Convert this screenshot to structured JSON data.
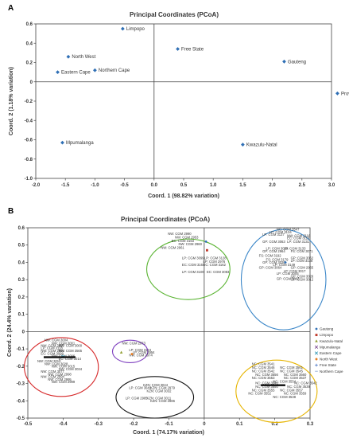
{
  "chart_data": [
    {
      "panel": "A",
      "type": "scatter",
      "title": "Principal Coordinates (PCoA)",
      "xlabel": "Coord. 1 (98.82% variation)",
      "ylabel": "Coord. 2 (1.18% variation)",
      "xlim": [
        -2.0,
        3.0
      ],
      "ylim": [
        -1.0,
        0.6
      ],
      "xticks": [
        -2.0,
        -1.5,
        -1.0,
        -0.5,
        0.0,
        0.5,
        1.0,
        1.5,
        2.0,
        2.5,
        3.0
      ],
      "xtick_labels": [
        "-2.0",
        "-1.5",
        "-1.0",
        "-0.5",
        "0.0",
        "0.5",
        "1.0",
        "1.5",
        "2.0",
        "2.5",
        "3.0"
      ],
      "yticks": [
        0.6,
        0.4,
        0.2,
        0.0,
        -0.2,
        -0.4,
        -0.6,
        -0.8,
        -1.0
      ],
      "ytick_labels": [
        "0.6",
        "0.4",
        "0.2",
        "0",
        "-0.2",
        "-0.4",
        "-0.6",
        "-0.8",
        "-1.0"
      ],
      "grid": false,
      "marker_color": "#2f6fb5",
      "points": [
        {
          "label": "Limpopo",
          "x": -0.53,
          "y": 0.55
        },
        {
          "label": "Free State",
          "x": 0.4,
          "y": 0.34
        },
        {
          "label": "North West",
          "x": -1.45,
          "y": 0.26
        },
        {
          "label": "Gauteng",
          "x": 2.2,
          "y": 0.21
        },
        {
          "label": "Eastern Cape",
          "x": -1.63,
          "y": 0.1
        },
        {
          "label": "Northern Cape",
          "x": -1.0,
          "y": 0.12
        },
        {
          "label": "Province",
          "x": 3.1,
          "y": -0.12
        },
        {
          "label": "Mpumalanga",
          "x": -1.55,
          "y": -0.63
        },
        {
          "label": "Kwazulu-Natal",
          "x": 1.5,
          "y": -0.65
        }
      ]
    },
    {
      "panel": "B",
      "type": "scatter",
      "title": "Principal Coordinates (PCoA)",
      "xlabel": "Coord. 1 (74.17% variation)",
      "ylabel": "Coord. 2 (24.4% variation)",
      "xlim": [
        -0.5,
        0.3
      ],
      "ylim": [
        -0.5,
        0.6
      ],
      "xticks": [
        -0.5,
        -0.4,
        -0.3,
        -0.2,
        -0.1,
        0.0,
        0.1,
        0.2,
        0.3
      ],
      "xtick_labels": [
        "-0.5",
        "-0.4",
        "-0.3",
        "-0.2",
        "-0.1",
        "0",
        "0.1",
        "0.2",
        "0.3"
      ],
      "yticks": [
        0.6,
        0.5,
        0.4,
        0.3,
        0.2,
        0.1,
        0.0,
        -0.1,
        -0.2,
        -0.3,
        -0.4,
        -0.5
      ],
      "ytick_labels": [
        "0.6",
        "0.5",
        "0.4",
        "0.3",
        "0.2",
        "0.1",
        "0",
        "-0.1",
        "-0.2",
        "-0.3",
        "-0.4",
        "-0.5"
      ],
      "grid": false,
      "legend_position": "right",
      "legend": [
        {
          "name": "Gauteng",
          "color": "#2f6fb5",
          "marker": "diamond"
        },
        {
          "name": "Limpopo",
          "color": "#c0392b",
          "marker": "square"
        },
        {
          "name": "Kwazulu-Natal",
          "color": "#8e9c2e",
          "marker": "triangle"
        },
        {
          "name": "Mpumalanga",
          "color": "#6c3483",
          "marker": "x"
        },
        {
          "name": "Eastern Cape",
          "color": "#1f8fb0",
          "marker": "x"
        },
        {
          "name": "North West",
          "color": "#e67e22",
          "marker": "circle"
        },
        {
          "name": "Free State",
          "color": "#4a74c4",
          "marker": "plus"
        },
        {
          "name": "Northern Cape",
          "color": "#9bb3d8",
          "marker": "dash"
        }
      ],
      "clusters": [
        {
          "color": "#d62728",
          "cx": -0.405,
          "cy": -0.205,
          "rx": 0.105,
          "ry": 0.17
        },
        {
          "color": "#7e3fbf",
          "cx": -0.21,
          "cy": -0.115,
          "rx": 0.05,
          "ry": 0.065
        },
        {
          "color": "#5ab432",
          "cx": -0.045,
          "cy": 0.36,
          "rx": 0.118,
          "ry": 0.175
        },
        {
          "color": "#3a86c8",
          "cx": 0.225,
          "cy": 0.3,
          "rx": 0.12,
          "ry": 0.29
        },
        {
          "color": "#111111",
          "cx": -0.14,
          "cy": -0.38,
          "rx": 0.11,
          "ry": 0.12
        },
        {
          "color": "#e6b400",
          "cx": 0.205,
          "cy": -0.345,
          "rx": 0.115,
          "ry": 0.18
        }
      ],
      "point_labels": [
        {
          "text": "NW: CGM 2990",
          "x": -0.103,
          "y": 0.558
        },
        {
          "text": "NW: CGM 2953",
          "x": -0.083,
          "y": 0.538
        },
        {
          "text": "EC: CGM 3163",
          "x": -0.093,
          "y": 0.518
        },
        {
          "text": "NW: CGM 2960",
          "x": -0.073,
          "y": 0.498
        },
        {
          "text": "NW: CGM 2961",
          "x": -0.123,
          "y": 0.478
        },
        {
          "text": "LP: CGM 3099",
          "x": -0.063,
          "y": 0.418
        },
        {
          "text": "LP: CGM 3128",
          "x": 0.0,
          "y": 0.418
        },
        {
          "text": "LP: CGM 2976",
          "x": -0.003,
          "y": 0.398
        },
        {
          "text": "EC: CGM 3167",
          "x": -0.063,
          "y": 0.378
        },
        {
          "text": "EC: CGM 3162",
          "x": -0.003,
          "y": 0.378
        },
        {
          "text": "LP: CGM 3100",
          "x": -0.063,
          "y": 0.338
        },
        {
          "text": "EC: CGM 3083",
          "x": 0.007,
          "y": 0.338
        },
        {
          "text": "NC: CGM 3547",
          "x": 0.205,
          "y": 0.583
        },
        {
          "text": "LP: CGM 3134",
          "x": 0.185,
          "y": 0.568
        },
        {
          "text": "LP: CGM 3127",
          "x": 0.165,
          "y": 0.553
        },
        {
          "text": "NW: CGM 3116",
          "x": 0.235,
          "y": 0.548
        },
        {
          "text": "EC: CGM 3113",
          "x": 0.235,
          "y": 0.533
        },
        {
          "text": "GP: CGM 3063",
          "x": 0.165,
          "y": 0.513
        },
        {
          "text": "LP: CGM 3131",
          "x": 0.235,
          "y": 0.513
        },
        {
          "text": "LP: CGM 3009",
          "x": 0.175,
          "y": 0.473
        },
        {
          "text": "LP: CGM 3133",
          "x": 0.225,
          "y": 0.473
        },
        {
          "text": "GP: CGM 2964",
          "x": 0.165,
          "y": 0.458
        },
        {
          "text": "FS: CGM 3071",
          "x": 0.245,
          "y": 0.458
        },
        {
          "text": "FS: CGM 3192",
          "x": 0.155,
          "y": 0.433
        },
        {
          "text": "GP: CGM 3062",
          "x": 0.245,
          "y": 0.418
        },
        {
          "text": "FS: CGM 3179",
          "x": 0.175,
          "y": 0.408
        },
        {
          "text": "LP: CGM 3138",
          "x": 0.245,
          "y": 0.403
        },
        {
          "text": "GP: CGM 3020",
          "x": 0.165,
          "y": 0.393
        },
        {
          "text": "LP: CGM 3149",
          "x": 0.195,
          "y": 0.378
        },
        {
          "text": "GP: CGM 3064",
          "x": 0.155,
          "y": 0.363
        },
        {
          "text": "GP: CGM 2965",
          "x": 0.245,
          "y": 0.363
        },
        {
          "text": "LP: CGM 3017",
          "x": 0.225,
          "y": 0.343
        },
        {
          "text": "LP: CGM 3005",
          "x": 0.205,
          "y": 0.328
        },
        {
          "text": "GP: CGM 3026",
          "x": 0.245,
          "y": 0.313
        },
        {
          "text": "GP: CGM 3043",
          "x": 0.205,
          "y": 0.298
        },
        {
          "text": "GP: CGM 3012",
          "x": 0.245,
          "y": 0.293
        },
        {
          "text": "NW: CGM 3004",
          "x": -0.453,
          "y": -0.055
        },
        {
          "text": "NW: CGM 3001",
          "x": -0.433,
          "y": -0.075
        },
        {
          "text": "NW: CGM 2997",
          "x": -0.463,
          "y": -0.088
        },
        {
          "text": "NW: CGM 3000",
          "x": -0.413,
          "y": -0.088
        },
        {
          "text": "LP: CGM 3118",
          "x": -0.463,
          "y": -0.103
        },
        {
          "text": "NW: CGM 2992",
          "x": -0.463,
          "y": -0.118
        },
        {
          "text": "NW: CGM 3565",
          "x": -0.413,
          "y": -0.118
        },
        {
          "text": "EC: CGM 3008",
          "x": -0.463,
          "y": -0.133
        },
        {
          "text": "NW: CGM 3006",
          "x": -0.433,
          "y": -0.148
        },
        {
          "text": "EC: CGM 3014",
          "x": -0.413,
          "y": -0.163
        },
        {
          "text": "NW: CGM 3010",
          "x": -0.473,
          "y": -0.178
        },
        {
          "text": "NW: CGM 3028",
          "x": -0.453,
          "y": -0.193
        },
        {
          "text": "NW: CGM 3015",
          "x": -0.433,
          "y": -0.208
        },
        {
          "text": "NW: CGM 3034",
          "x": -0.413,
          "y": -0.223
        },
        {
          "text": "NW: CGM 3077",
          "x": -0.463,
          "y": -0.238
        },
        {
          "text": "NW: CGM 2998",
          "x": -0.443,
          "y": -0.253
        },
        {
          "text": "NW: CGM 2994",
          "x": -0.463,
          "y": -0.268
        },
        {
          "text": "NW: CGM 2995",
          "x": -0.443,
          "y": -0.283
        },
        {
          "text": "NW: CGM 2999",
          "x": -0.433,
          "y": -0.298
        },
        {
          "text": "NW: CGM 2973",
          "x": -0.233,
          "y": -0.075
        },
        {
          "text": "LP: CGM 3124",
          "x": -0.213,
          "y": -0.113
        },
        {
          "text": "LP: CGM 2954",
          "x": -0.203,
          "y": -0.128
        },
        {
          "text": "NW: CGM 2974",
          "x": -0.213,
          "y": -0.143
        },
        {
          "text": "KZN: CGM 3044",
          "x": -0.173,
          "y": -0.315
        },
        {
          "text": "LP: CGM 3040",
          "x": -0.213,
          "y": -0.333
        },
        {
          "text": "KZN: CGM 2979",
          "x": -0.153,
          "y": -0.333
        },
        {
          "text": "KZN: CGM 3032",
          "x": -0.163,
          "y": -0.351
        },
        {
          "text": "LP: CGM 2985",
          "x": -0.223,
          "y": -0.391
        },
        {
          "text": "KZN: CGM 3011",
          "x": -0.163,
          "y": -0.391
        },
        {
          "text": "KZN: CGM 2986",
          "x": -0.153,
          "y": -0.409
        },
        {
          "text": "NC: CGM 3541",
          "x": 0.135,
          "y": -0.195
        },
        {
          "text": "NC: CGM 3546",
          "x": 0.135,
          "y": -0.215
        },
        {
          "text": "NC: CGM 3561",
          "x": 0.215,
          "y": -0.215
        },
        {
          "text": "NC: CGM 3542",
          "x": 0.135,
          "y": -0.235
        },
        {
          "text": "NC: CGM 3545",
          "x": 0.215,
          "y": -0.235
        },
        {
          "text": "NC: CGM 3556",
          "x": 0.145,
          "y": -0.255
        },
        {
          "text": "NC: CGM 3560",
          "x": 0.225,
          "y": -0.255
        },
        {
          "text": "NC: CGM 3553",
          "x": 0.135,
          "y": -0.275
        },
        {
          "text": "NC: CGM 3537",
          "x": 0.225,
          "y": -0.275
        },
        {
          "text": "NC: CGM 3554",
          "x": 0.195,
          "y": -0.295
        },
        {
          "text": "NC: CGM 3540",
          "x": 0.145,
          "y": -0.305
        },
        {
          "text": "NC: CGM 3542",
          "x": 0.255,
          "y": -0.305
        },
        {
          "text": "NC: CGM 3550",
          "x": 0.145,
          "y": -0.325
        },
        {
          "text": "NC: CGM 3539",
          "x": 0.235,
          "y": -0.325
        },
        {
          "text": "NC: CGM 3555",
          "x": 0.135,
          "y": -0.345
        },
        {
          "text": "NC: CGM 3557",
          "x": 0.215,
          "y": -0.345
        },
        {
          "text": "NC: CGM 3552",
          "x": 0.125,
          "y": -0.365
        },
        {
          "text": "NC: CGM 3559",
          "x": 0.225,
          "y": -0.365
        },
        {
          "text": "NC: CGM 3538",
          "x": 0.195,
          "y": -0.385
        }
      ],
      "points": [
        {
          "series": "Gauteng",
          "x": 0.005,
          "y": 0.52
        },
        {
          "series": "Limpopo",
          "x": 0.008,
          "y": 0.47
        },
        {
          "series": "Kwazulu-Natal",
          "x": -0.235,
          "y": -0.12
        },
        {
          "series": "North West",
          "x": -0.205,
          "y": -0.13
        },
        {
          "series": "Gauteng",
          "x": 0.23,
          "y": 0.4
        },
        {
          "series": "Eastern Cape",
          "x": -0.4,
          "y": -0.145
        }
      ]
    }
  ]
}
